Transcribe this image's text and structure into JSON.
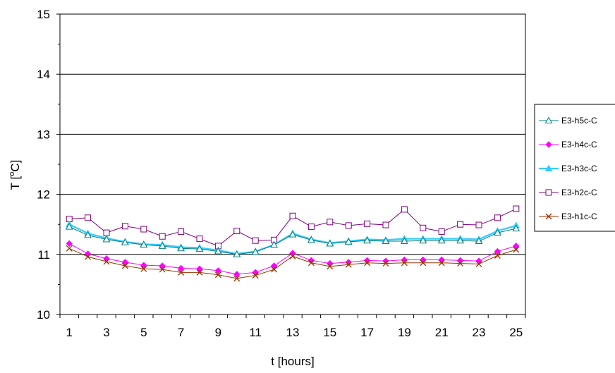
{
  "chart_data": {
    "type": "line",
    "title": "",
    "xlabel": "t [hours]",
    "ylabel": "T [",
    "ylabel_sup": "o",
    "ylabel_tail": "C]",
    "ylim": [
      10,
      15
    ],
    "yticks": [
      "10",
      "11",
      "12",
      "13",
      "14",
      "15"
    ],
    "xlim": [
      1,
      25
    ],
    "xticks": [
      "1",
      "3",
      "5",
      "7",
      "9",
      "11",
      "13",
      "15",
      "17",
      "19",
      "21",
      "23",
      "25"
    ],
    "grid": "horizontal major lines",
    "legend_position": "right",
    "x": [
      1,
      2,
      3,
      4,
      5,
      6,
      7,
      8,
      9,
      10,
      11,
      12,
      13,
      14,
      15,
      16,
      17,
      18,
      19,
      20,
      21,
      22,
      23,
      24,
      25
    ],
    "series": [
      {
        "name": "E3-h5c-C",
        "color": "#008080",
        "marker": "triangle-open",
        "values": [
          11.46,
          11.32,
          11.25,
          11.2,
          11.16,
          11.14,
          11.1,
          11.09,
          11.05,
          11.0,
          11.04,
          11.16,
          11.33,
          11.24,
          11.18,
          11.21,
          11.23,
          11.22,
          11.22,
          11.23,
          11.23,
          11.23,
          11.22,
          11.36,
          11.43
        ]
      },
      {
        "name": "E3-h4c-C",
        "color": "#ff00ff",
        "marker": "diamond",
        "values": [
          11.18,
          11.01,
          10.93,
          10.87,
          10.82,
          10.81,
          10.77,
          10.76,
          10.73,
          10.67,
          10.7,
          10.81,
          11.02,
          10.9,
          10.85,
          10.87,
          10.9,
          10.89,
          10.91,
          10.91,
          10.91,
          10.9,
          10.89,
          11.05,
          11.14
        ]
      },
      {
        "name": "E3-h3c-C",
        "color": "#33ccff",
        "marker": "triangle",
        "values": [
          11.5,
          11.35,
          11.27,
          11.21,
          11.17,
          11.16,
          11.12,
          11.11,
          11.07,
          11.01,
          11.05,
          11.16,
          11.35,
          11.25,
          11.19,
          11.22,
          11.25,
          11.24,
          11.26,
          11.26,
          11.26,
          11.26,
          11.25,
          11.39,
          11.48
        ]
      },
      {
        "name": "E3-h2c-C",
        "color": "#800080",
        "marker": "square-open",
        "values": [
          11.59,
          11.61,
          11.36,
          11.47,
          11.42,
          11.3,
          11.38,
          11.26,
          11.14,
          11.39,
          11.23,
          11.24,
          11.64,
          11.46,
          11.54,
          11.48,
          11.51,
          11.49,
          11.75,
          11.44,
          11.38,
          11.5,
          11.49,
          11.61,
          11.76
        ]
      },
      {
        "name": "E3-h1c-C",
        "color": "#993300",
        "marker": "x",
        "values": [
          11.1,
          10.96,
          10.88,
          10.81,
          10.76,
          10.75,
          10.7,
          10.7,
          10.66,
          10.6,
          10.65,
          10.75,
          10.97,
          10.86,
          10.8,
          10.83,
          10.86,
          10.85,
          10.86,
          10.86,
          10.86,
          10.85,
          10.84,
          10.98,
          11.08
        ]
      }
    ]
  }
}
